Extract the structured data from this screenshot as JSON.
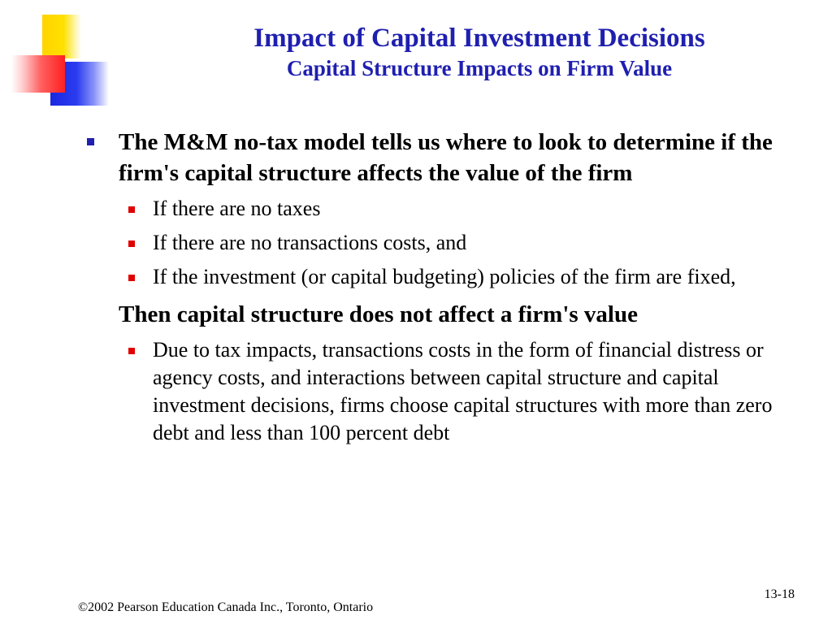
{
  "colors": {
    "title": "#1f1fb0",
    "bullet_primary": "#1f1fb0",
    "bullet_secondary": "#e00000",
    "logo_yellow": "#ffd400",
    "logo_red": "#ff2020",
    "logo_blue": "#1a28e0"
  },
  "header": {
    "title": "Impact of Capital Investment Decisions",
    "subtitle": "Capital Structure Impacts on Firm Value"
  },
  "content": {
    "point1": "The M&M no-tax model tells us where to look to determine if the firm's capital structure affects the value of the firm",
    "conditions": [
      "If there are no taxes",
      "If there are no transactions costs, and",
      "If the investment (or capital budgeting) policies of the firm are fixed,"
    ],
    "conclusion": "Then capital structure does not affect a firm's value",
    "detail": "Due to tax impacts, transactions costs in the form of financial distress or agency costs, and interactions between capital structure and capital investment decisions, firms choose capital structures with more than zero debt and less than 100 percent debt"
  },
  "footer": {
    "copyright": "©2002 Pearson Education Canada Inc., Toronto, Ontario",
    "page_number": "13-18"
  },
  "icons": {
    "primary_bullet": "square-bullet-icon",
    "secondary_bullet": "square-bullet-icon",
    "logo": "color-blocks-logo"
  }
}
